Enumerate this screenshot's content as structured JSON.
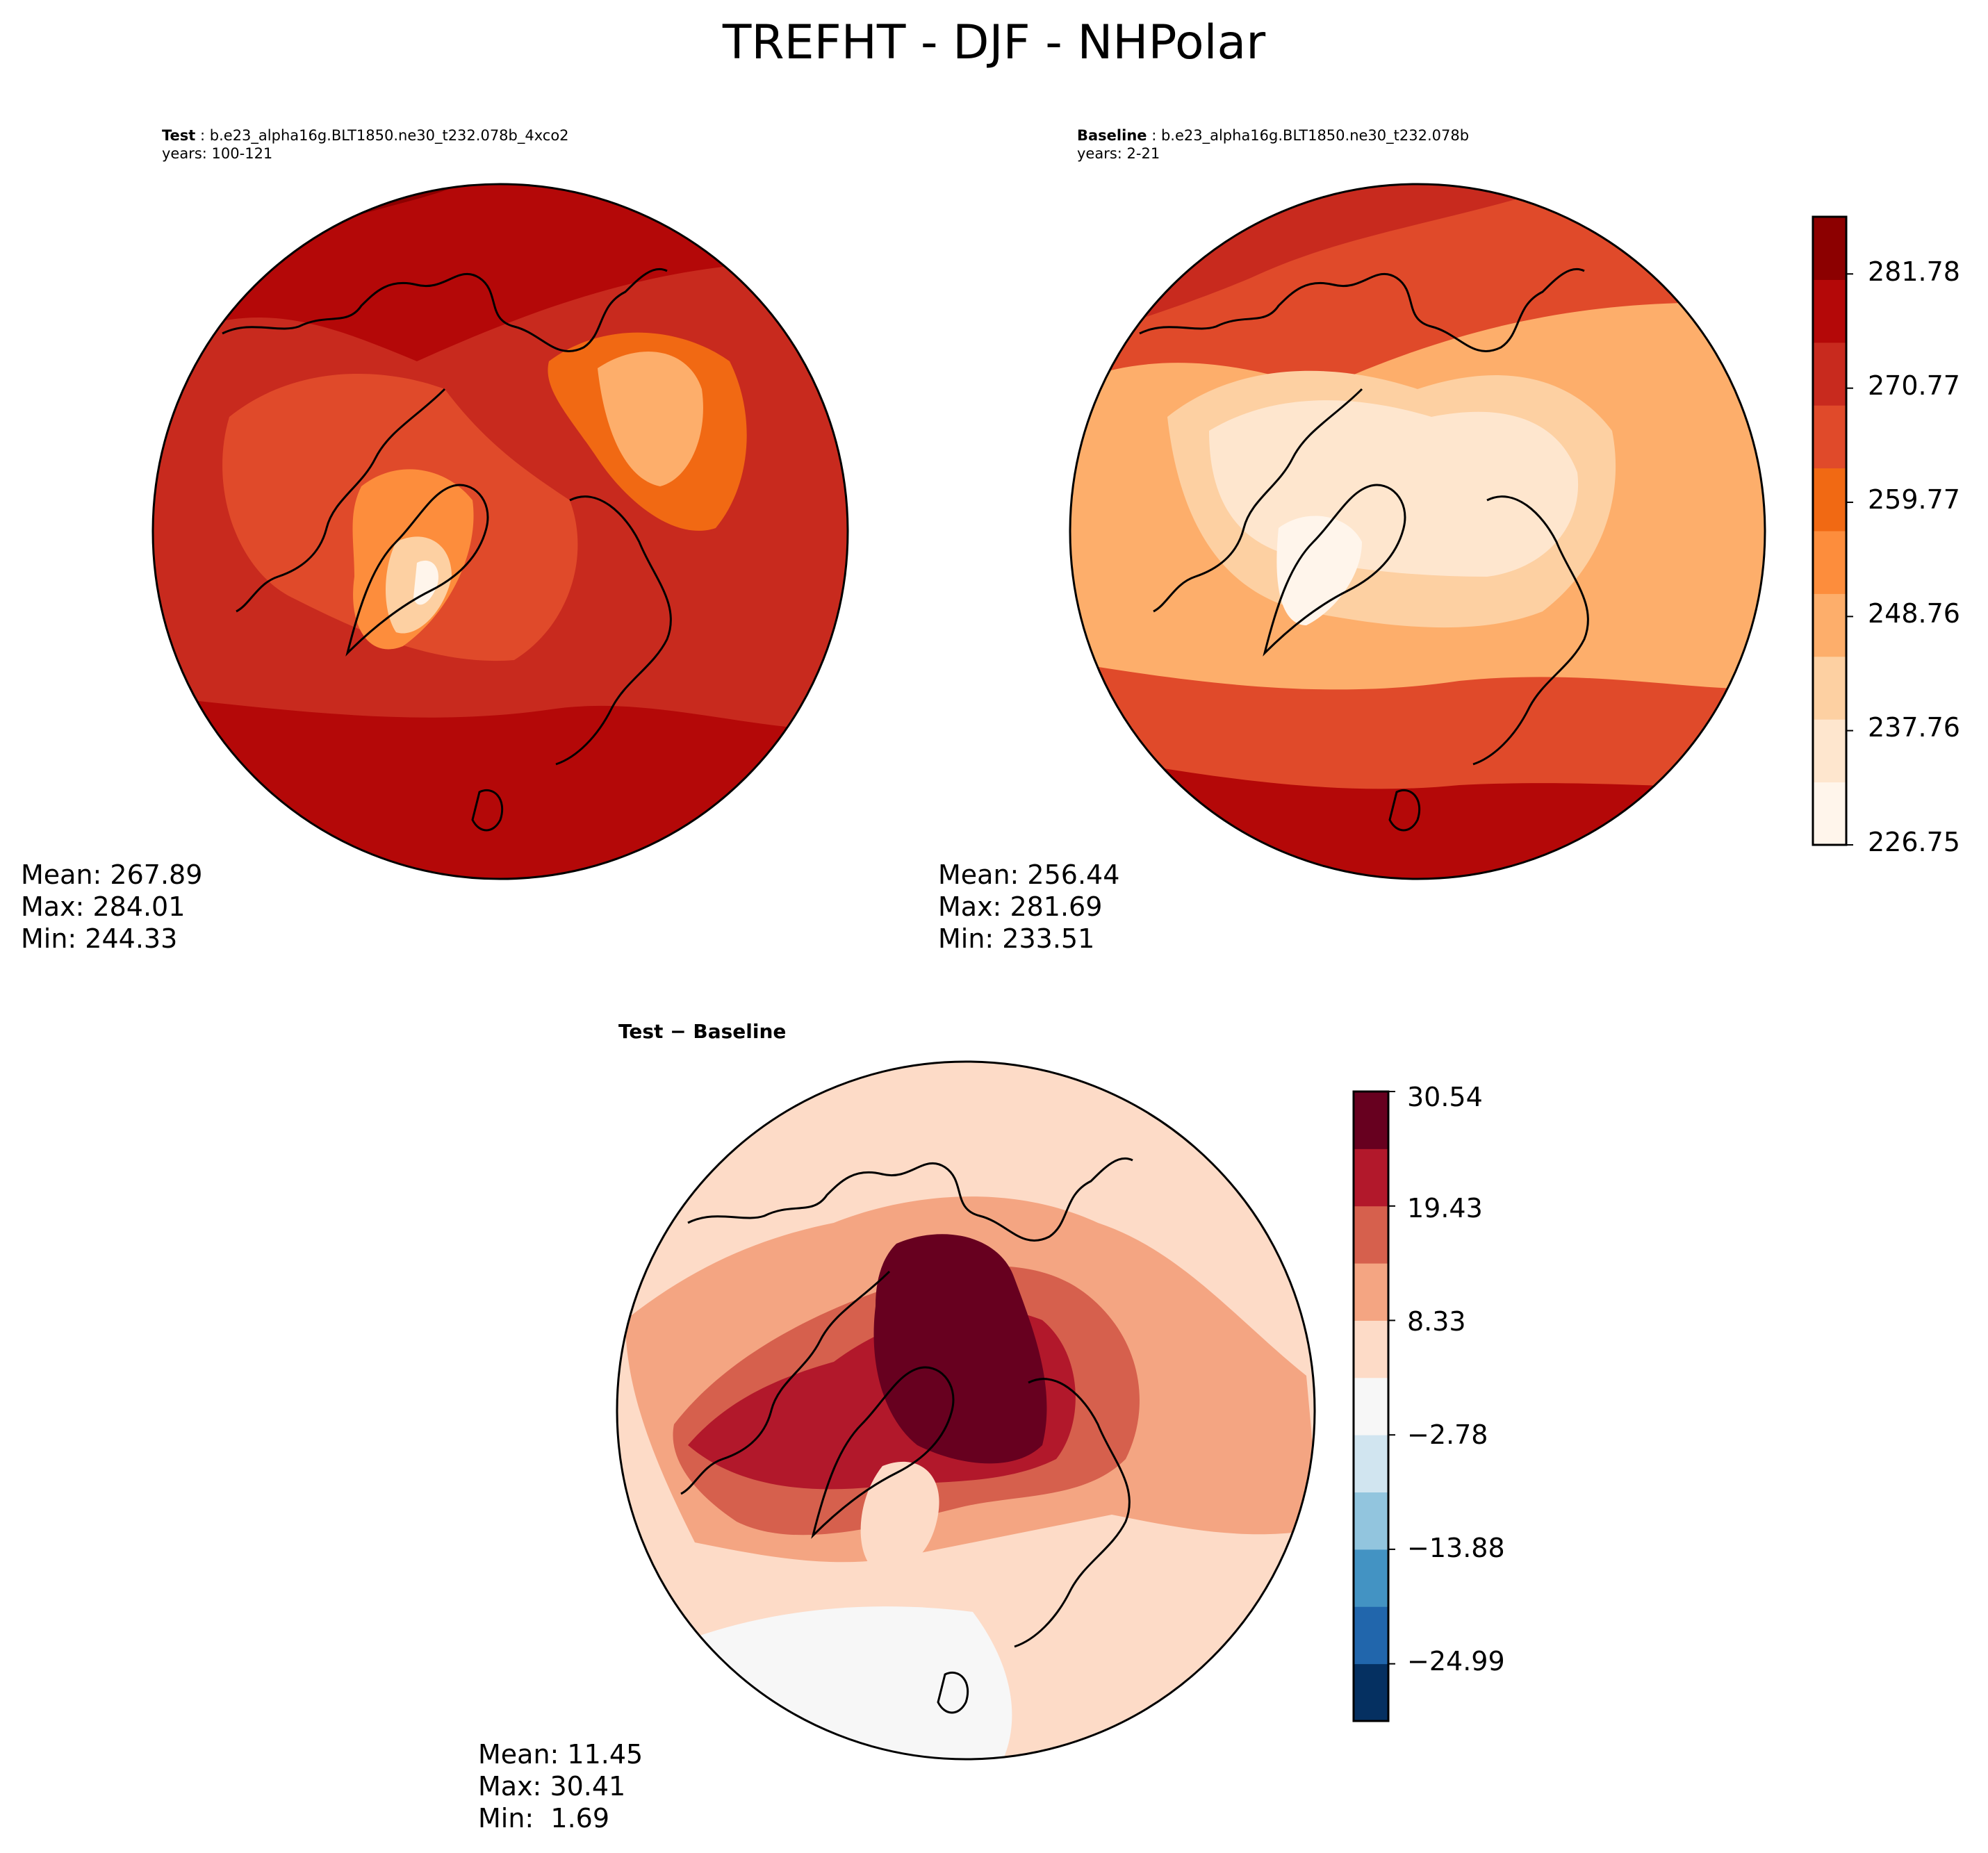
{
  "title": "TREFHT - DJF - NHPolar",
  "colors": {
    "reds": [
      "#fff5eb",
      "#fee6ce",
      "#fdd0a2",
      "#fdae6b",
      "#fd8d3c",
      "#f16913",
      "#e04a2a",
      "#c82a1e",
      "#b40808",
      "#8c0000"
    ],
    "diverging": [
      "#053061",
      "#2166ac",
      "#4393c3",
      "#92c5de",
      "#d1e5f0",
      "#f7f7f7",
      "#fddbc7",
      "#f4a582",
      "#d6604d",
      "#b2182b",
      "#67001f"
    ],
    "coastline": "#000000"
  },
  "test": {
    "label": "Test",
    "case": "b.e23_alpha16g.BLT1850.ne30_t232.078b_4xco2",
    "years": "years: 100-121",
    "stats": {
      "mean": "Mean: 267.89",
      "max": "Max: 284.01",
      "min": "Min: 244.33"
    }
  },
  "baseline": {
    "label": "Baseline",
    "case": "b.e23_alpha16g.BLT1850.ne30_t232.078b",
    "years": "years: 2-21",
    "stats": {
      "mean": "Mean: 256.44",
      "max": "Max: 281.69",
      "min": "Min: 233.51"
    }
  },
  "diff": {
    "title": "Test − Baseline",
    "stats": {
      "mean": "Mean: 11.45",
      "max": "Max: 30.41",
      "min": "Min:  1.69"
    }
  },
  "chart_data": [
    {
      "type": "heatmap",
      "projection": "north-polar-stereographic",
      "panel": "Test",
      "variable": "TREFHT",
      "season": "DJF",
      "mean": 267.89,
      "max": 284.01,
      "min": 244.33,
      "colorbar": {
        "range": [
          226.75,
          287.29
        ],
        "ticks": [
          226.75,
          237.76,
          248.76,
          259.77,
          270.77,
          281.78
        ],
        "tick_labels": [
          "226.75",
          "237.76",
          "248.76",
          "259.77",
          "270.77",
          "281.78"
        ]
      }
    },
    {
      "type": "heatmap",
      "projection": "north-polar-stereographic",
      "panel": "Baseline",
      "variable": "TREFHT",
      "season": "DJF",
      "mean": 256.44,
      "max": 281.69,
      "min": 233.51,
      "colorbar": {
        "range": [
          226.75,
          287.29
        ],
        "ticks": [
          226.75,
          237.76,
          248.76,
          259.77,
          270.77,
          281.78
        ],
        "tick_labels": [
          "226.75",
          "237.76",
          "248.76",
          "259.77",
          "270.77",
          "281.78"
        ]
      }
    },
    {
      "type": "heatmap",
      "projection": "north-polar-stereographic",
      "panel": "Test − Baseline",
      "mean": 11.45,
      "max": 30.41,
      "min": 1.69,
      "colorbar": {
        "range": [
          -30.54,
          30.54
        ],
        "ticks": [
          -24.99,
          -13.88,
          -2.78,
          8.33,
          19.43,
          30.54
        ],
        "tick_labels": [
          "−24.99",
          "−13.88",
          "−2.78",
          "8.33",
          "19.43",
          "30.54"
        ]
      }
    }
  ]
}
